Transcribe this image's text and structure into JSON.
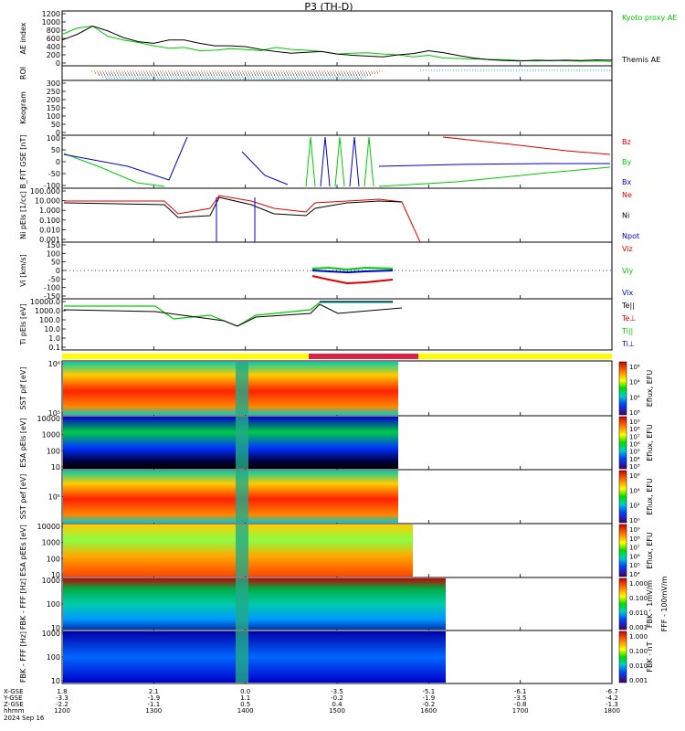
{
  "title": "P3 (TH-D)",
  "footer": {
    "rows": [
      "X-GSE",
      "Y-GSE",
      "Z-GSE",
      "hhmm"
    ],
    "date": "2024 Sep 16"
  },
  "chart_data": {
    "type": "line",
    "time_ticks": [
      "1200",
      "1300",
      "1400",
      "1500",
      "1600",
      "1700",
      "1800"
    ],
    "x_gse": [
      "1.8",
      "2.1",
      "0.0",
      "-3.5",
      "-5.1",
      "-6.1",
      "-6.7"
    ],
    "y_gse": [
      "-3.3",
      "-1.9",
      "1.1",
      "-0.2",
      "-1.9",
      "-3.5",
      "-4.2"
    ],
    "z_gse": [
      "-2.2",
      "-1.1",
      "0.5",
      "0.4",
      "-0.2",
      "-0.8",
      "-1.3"
    ],
    "panels": [
      {
        "id": "ae",
        "ylabel": "AE index",
        "yticks": [
          "1200",
          "1000",
          "800",
          "600",
          "400",
          "200",
          "0"
        ],
        "legend": [
          {
            "label": "Kyoto proxy AE",
            "color": "#00cc00"
          },
          {
            "label": "Themis AE",
            "color": "#000000"
          }
        ],
        "series": [
          {
            "name": "Kyoto proxy AE",
            "color": "#00cc00",
            "t": [
              1200,
              1210,
              1220,
              1230,
              1240,
              1250,
              1300,
              1310,
              1320,
              1330,
              1340,
              1350,
              1400,
              1410,
              1420,
              1430,
              1440,
              1450,
              1500,
              1510,
              1520,
              1530,
              1540,
              1550,
              1600,
              1610,
              1620,
              1630,
              1640,
              1650,
              1700,
              1710,
              1720,
              1730,
              1740,
              1750,
              1800
            ],
            "y": [
              700,
              850,
              900,
              650,
              560,
              500,
              420,
              360,
              380,
              300,
              310,
              350,
              330,
              300,
              380,
              330,
              310,
              280,
              220,
              240,
              250,
              220,
              200,
              150,
              190,
              120,
              110,
              100,
              90,
              80,
              60,
              50,
              60,
              55,
              45,
              50,
              40
            ]
          },
          {
            "name": "Themis AE",
            "color": "#000000",
            "t": [
              1200,
              1210,
              1220,
              1230,
              1240,
              1250,
              1300,
              1310,
              1320,
              1330,
              1340,
              1350,
              1400,
              1410,
              1420,
              1430,
              1440,
              1450,
              1500,
              1510,
              1520,
              1530,
              1540,
              1550,
              1600,
              1610,
              1620,
              1630,
              1640,
              1650,
              1700,
              1710,
              1720,
              1730,
              1740,
              1750,
              1800
            ],
            "y": [
              560,
              700,
              900,
              780,
              620,
              520,
              480,
              560,
              560,
              480,
              420,
              420,
              400,
              330,
              280,
              240,
              260,
              280,
              220,
              190,
              170,
              150,
              200,
              230,
              300,
              250,
              180,
              120,
              80,
              60,
              50,
              70,
              60,
              70,
              60,
              75,
              70
            ]
          }
        ]
      },
      {
        "id": "roi",
        "ylabel": "ROI"
      },
      {
        "id": "keogram",
        "ylabel": "Keogram",
        "yticks": [
          "300",
          "250",
          "200",
          "150",
          "100",
          "50",
          "0"
        ]
      },
      {
        "id": "b",
        "ylabel": "B_FIT GSE [nT]",
        "yticks": [
          "100",
          "50",
          "0",
          "-50",
          "-100"
        ],
        "legend": [
          {
            "label": "Bz",
            "color": "#dd0000"
          },
          {
            "label": "By",
            "color": "#00cc00"
          },
          {
            "label": "Bx",
            "color": "#0000cc"
          }
        ]
      },
      {
        "id": "n",
        "ylabel": "Ni pEIs [1/cc]",
        "yticks": [
          "100.000",
          "10.000",
          "1.000",
          "0.100",
          "0.010",
          "0.001"
        ],
        "legend": [
          {
            "label": "Ne",
            "color": "#dd0000"
          },
          {
            "label": "Ni",
            "color": "#000000"
          },
          {
            "label": "Npot",
            "color": "#0000cc"
          }
        ]
      },
      {
        "id": "v",
        "ylabel": "Vi [km/s]",
        "yticks": [
          "150",
          "100",
          "50",
          "0",
          "-50",
          "-100",
          "-150"
        ],
        "legend": [
          {
            "label": "Viz",
            "color": "#dd0000"
          },
          {
            "label": "Viy",
            "color": "#00cc00"
          },
          {
            "label": "Vix",
            "color": "#0000cc"
          }
        ]
      },
      {
        "id": "t",
        "ylabel": "Ti pEIs [eV]",
        "yticks": [
          "10000.0",
          "1000.0",
          "100.0",
          "10.0",
          "1.0",
          "0.1"
        ],
        "legend": [
          {
            "label": "Te||",
            "color": "#000000"
          },
          {
            "label": "Te⊥",
            "color": "#dd0000"
          },
          {
            "label": "Ti||",
            "color": "#00cc00"
          },
          {
            "label": "Ti⊥",
            "color": "#0000cc"
          }
        ]
      },
      {
        "id": "sst_i",
        "ylabel": "SST pif [eV]",
        "yticks": [
          "10⁶",
          "10⁵"
        ],
        "cbar": {
          "label": "Eflux, EFU",
          "ticks": [
            "10⁸",
            "10⁴",
            "10⁶",
            "10⁸"
          ]
        }
      },
      {
        "id": "esa_i",
        "ylabel": "ESA pEIs [eV]",
        "yticks": [
          "10000",
          "1000",
          "100",
          "10"
        ],
        "cbar": {
          "label": "Eflux, EFU",
          "ticks": [
            "10⁹",
            "10⁸",
            "10⁷",
            "10⁶",
            "10⁵",
            "10⁴",
            "10³"
          ]
        }
      },
      {
        "id": "sst_e",
        "ylabel": "SST pef [eV]",
        "yticks": [
          "10⁵"
        ],
        "cbar": {
          "label": "Eflux, EFU",
          "ticks": [
            "10⁶",
            "10⁴",
            "10²",
            "10⁰"
          ]
        }
      },
      {
        "id": "esa_e",
        "ylabel": "ESA pEEs [eV]",
        "yticks": [
          "10000",
          "1000",
          "100",
          "10"
        ],
        "cbar": {
          "label": "Eflux, EFU",
          "ticks": [
            "10⁹",
            "10⁸",
            "10⁷",
            "10⁶",
            "10⁵",
            "10⁴"
          ]
        }
      },
      {
        "id": "fbk_fff",
        "ylabel": "FBK - FFF [Hz]",
        "yticks": [
          "1000",
          "100",
          "10"
        ],
        "cbar": {
          "label": "FBK - 1mV/m",
          "extra": "FFF - 100mV/m",
          "ticks": [
            "1.000",
            "0.100",
            "0.010",
            "0.001"
          ]
        }
      },
      {
        "id": "fbk_ffw",
        "ylabel": "FBK - FFF [Hz]",
        "yticks": [
          "1000",
          "100",
          "10"
        ],
        "cbar": {
          "label": "FBK - nT",
          "ticks": [
            "1.000",
            "0.100",
            "0.010",
            "0.001"
          ]
        }
      }
    ]
  }
}
